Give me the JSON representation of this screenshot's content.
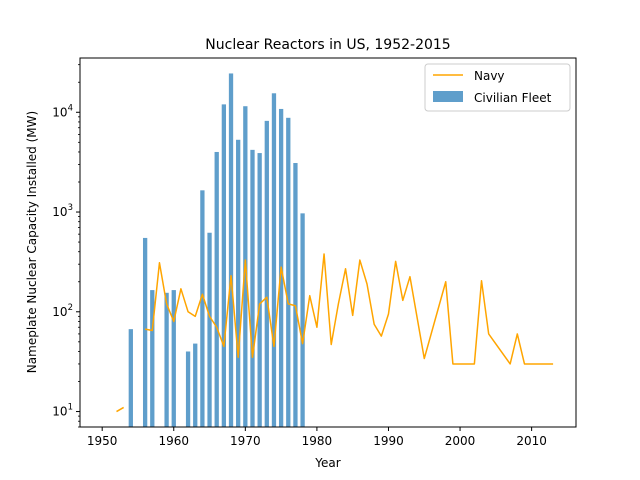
{
  "chart_data": {
    "type": "bar",
    "title": "Nuclear Reactors in US, 1952-2015",
    "xlabel": "Year",
    "ylabel": "Nameplate Nuclear Capacity Installed (MW)",
    "xlim": [
      1946.9,
      2016.2
    ],
    "ylim": [
      7,
      35000
    ],
    "yscale": "log",
    "xticks": [
      1950,
      1960,
      1970,
      1980,
      1990,
      2000,
      2010
    ],
    "yticks": [
      {
        "value": 10,
        "base": "10",
        "exp": "1"
      },
      {
        "value": 100,
        "base": "10",
        "exp": "2"
      },
      {
        "value": 1000,
        "base": "10",
        "exp": "3"
      },
      {
        "value": 10000,
        "base": "10",
        "exp": "4"
      }
    ],
    "legend": {
      "position": "top-right"
    },
    "series": [
      {
        "name": "Navy",
        "kind": "line",
        "color": "#ffa500",
        "segments": [
          [
            [
              1952,
              10
            ],
            [
              1953,
              11
            ]
          ],
          [
            [
              1956,
              67
            ],
            [
              1957,
              65
            ],
            [
              1958,
              310
            ],
            [
              1959,
              120
            ],
            [
              1960,
              80
            ],
            [
              1961,
              170
            ],
            [
              1962,
              100
            ],
            [
              1963,
              90
            ],
            [
              1964,
              150
            ],
            [
              1965,
              90
            ],
            [
              1966,
              70
            ],
            [
              1967,
              45
            ],
            [
              1968,
              230
            ],
            [
              1969,
              35
            ],
            [
              1970,
              330
            ],
            [
              1971,
              35
            ],
            [
              1972,
              120
            ],
            [
              1973,
              140
            ],
            [
              1974,
              45
            ],
            [
              1975,
              280
            ],
            [
              1976,
              120
            ],
            [
              1977,
              115
            ],
            [
              1978,
              48
            ],
            [
              1979,
              145
            ],
            [
              1980,
              70
            ],
            [
              1981,
              380
            ],
            [
              1982,
              47
            ],
            [
              1983,
              120
            ],
            [
              1984,
              270
            ],
            [
              1985,
              92
            ],
            [
              1986,
              330
            ],
            [
              1987,
              190
            ],
            [
              1988,
              75
            ],
            [
              1989,
              57
            ],
            [
              1990,
              95
            ],
            [
              1991,
              320
            ],
            [
              1992,
              130
            ],
            [
              1993,
              225
            ],
            [
              1995,
              34
            ],
            [
              1998,
              200
            ],
            [
              1999,
              30
            ],
            [
              2002,
              30
            ],
            [
              2003,
              205
            ],
            [
              2004,
              60
            ],
            [
              2007,
              30
            ],
            [
              2008,
              60
            ],
            [
              2009,
              30
            ],
            [
              2013,
              30
            ]
          ]
        ]
      },
      {
        "name": "Civilian Fleet",
        "kind": "bar",
        "color": "#5f9ecb",
        "points": [
          [
            1954,
            67
          ],
          [
            1956,
            550
          ],
          [
            1957,
            165
          ],
          [
            1959,
            155
          ],
          [
            1960,
            165
          ],
          [
            1962,
            40
          ],
          [
            1963,
            48
          ],
          [
            1964,
            1650
          ],
          [
            1965,
            620
          ],
          [
            1966,
            4000
          ],
          [
            1967,
            12000
          ],
          [
            1968,
            24500
          ],
          [
            1969,
            5300
          ],
          [
            1970,
            11500
          ],
          [
            1971,
            4200
          ],
          [
            1972,
            3900
          ],
          [
            1973,
            8200
          ],
          [
            1974,
            15500
          ],
          [
            1975,
            10800
          ],
          [
            1976,
            8800
          ],
          [
            1977,
            3100
          ],
          [
            1978,
            970
          ]
        ]
      }
    ]
  }
}
